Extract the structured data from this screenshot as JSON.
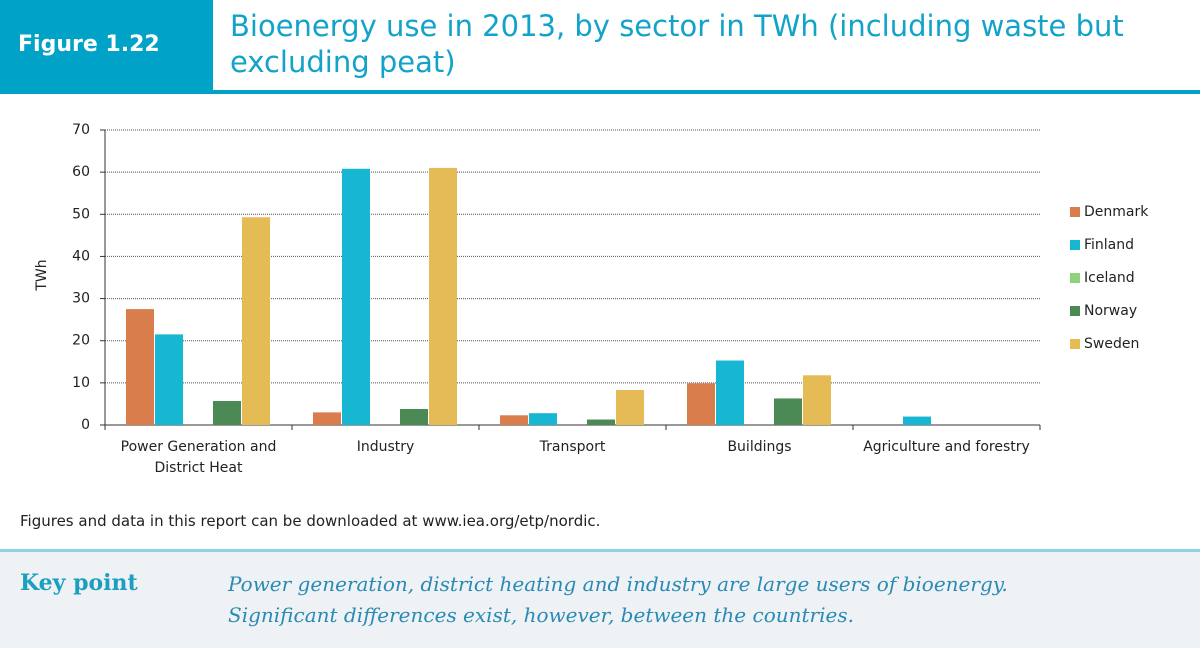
{
  "header": {
    "figure_label": "Figure 1.22",
    "title": "Bioenergy use in 2013, by sector in TWh (including waste but excluding peat)"
  },
  "chart_data": {
    "type": "bar",
    "y_label": "TWh",
    "categories": [
      "Power Generation and District Heat",
      "Industry",
      "Transport",
      "Buildings",
      "Agriculture and forestry"
    ],
    "series": [
      {
        "name": "Denmark",
        "color": "#d97d4c",
        "values": [
          27.5,
          3,
          2.3,
          9.9,
          0
        ]
      },
      {
        "name": "Finland",
        "color": "#17b6d3",
        "values": [
          21.5,
          60.8,
          2.8,
          15.3,
          2
        ]
      },
      {
        "name": "Iceland",
        "color": "#8ed27c",
        "values": [
          0,
          0,
          0,
          0,
          0
        ]
      },
      {
        "name": "Norway",
        "color": "#4b8a55",
        "values": [
          5.7,
          3.8,
          1.3,
          6.3,
          0
        ]
      },
      {
        "name": "Sweden",
        "color": "#e5bb56",
        "values": [
          49.3,
          61,
          8.3,
          11.8,
          0
        ]
      }
    ],
    "ylim": [
      0,
      70
    ],
    "yticks": [
      0,
      10,
      20,
      30,
      40,
      50,
      60,
      70
    ],
    "grid": true,
    "legend": "right"
  },
  "footer": {
    "source_note": "Figures and data in this report can be downloaded at www.iea.org/etp/nordic.",
    "key_point_label": "Key point",
    "key_point_text": [
      "Power generation, district heating and industry are large users of bioenergy.",
      "Significant differences exist, however, between the countries."
    ]
  }
}
